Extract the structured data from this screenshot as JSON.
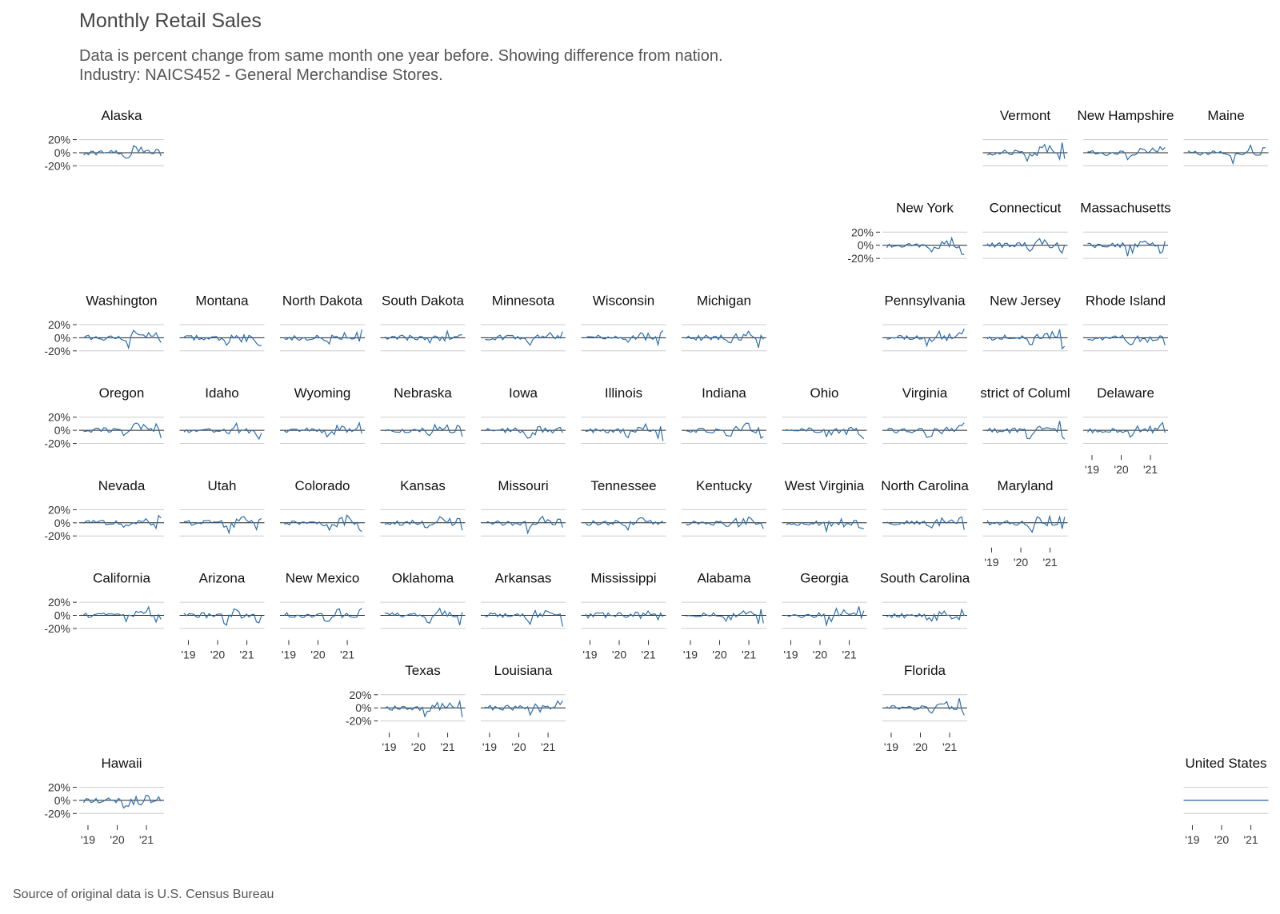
{
  "title": "Monthly Retail Sales",
  "subtitle_line1": "Data is percent change from same month one year before. Showing difference from nation.",
  "subtitle_line2": "Industry: NAICS452 - General Merchandise Stores.",
  "caption": "Source of original data is U.S. Census Bureau",
  "colors": {
    "line": "#2c6fad",
    "zero": "#222222",
    "grid": "#cccccc"
  },
  "chart_data": {
    "type": "line",
    "layout": "geofacet small multiples",
    "ylim": [
      -25,
      25
    ],
    "yticks": [
      20,
      0,
      -20
    ],
    "ytick_labels": [
      "20%",
      "0%",
      "-20%"
    ],
    "xticks": [
      2019,
      2020,
      2021
    ],
    "xtick_labels": [
      "'19",
      "'20",
      "'21"
    ],
    "xlim": [
      2018.7,
      2021.6
    ],
    "states": [
      {
        "name": "Alaska",
        "row": 0,
        "col": 0,
        "y_axis": true,
        "x_axis": false,
        "label": "Alaska"
      },
      {
        "name": "Vermont",
        "row": 0,
        "col": 9,
        "y_axis": false,
        "x_axis": false,
        "label": "Vermont"
      },
      {
        "name": "New Hampshire",
        "row": 0,
        "col": 10,
        "y_axis": false,
        "x_axis": false,
        "label": "New Hampshire"
      },
      {
        "name": "Maine",
        "row": 0,
        "col": 11,
        "y_axis": false,
        "x_axis": false,
        "label": "Maine"
      },
      {
        "name": "New York",
        "row": 1,
        "col": 8,
        "y_axis": true,
        "x_axis": false,
        "label": "New York"
      },
      {
        "name": "Connecticut",
        "row": 1,
        "col": 9,
        "y_axis": false,
        "x_axis": false,
        "label": "Connecticut"
      },
      {
        "name": "Massachusetts",
        "row": 1,
        "col": 10,
        "y_axis": false,
        "x_axis": false,
        "label": "Massachusetts"
      },
      {
        "name": "Washington",
        "row": 2,
        "col": 0,
        "y_axis": true,
        "x_axis": false,
        "label": "Washington"
      },
      {
        "name": "Montana",
        "row": 2,
        "col": 1,
        "y_axis": false,
        "x_axis": false,
        "label": "Montana"
      },
      {
        "name": "North Dakota",
        "row": 2,
        "col": 2,
        "y_axis": false,
        "x_axis": false,
        "label": "North Dakota"
      },
      {
        "name": "South Dakota",
        "row": 2,
        "col": 3,
        "y_axis": false,
        "x_axis": false,
        "label": "South Dakota"
      },
      {
        "name": "Minnesota",
        "row": 2,
        "col": 4,
        "y_axis": false,
        "x_axis": false,
        "label": "Minnesota"
      },
      {
        "name": "Wisconsin",
        "row": 2,
        "col": 5,
        "y_axis": false,
        "x_axis": false,
        "label": "Wisconsin"
      },
      {
        "name": "Michigan",
        "row": 2,
        "col": 6,
        "y_axis": false,
        "x_axis": false,
        "label": "Michigan"
      },
      {
        "name": "Pennsylvania",
        "row": 2,
        "col": 8,
        "y_axis": false,
        "x_axis": false,
        "label": "Pennsylvania"
      },
      {
        "name": "New Jersey",
        "row": 2,
        "col": 9,
        "y_axis": false,
        "x_axis": false,
        "label": "New Jersey"
      },
      {
        "name": "Rhode Island",
        "row": 2,
        "col": 10,
        "y_axis": false,
        "x_axis": false,
        "label": "Rhode Island"
      },
      {
        "name": "Oregon",
        "row": 3,
        "col": 0,
        "y_axis": true,
        "x_axis": false,
        "label": "Oregon"
      },
      {
        "name": "Idaho",
        "row": 3,
        "col": 1,
        "y_axis": false,
        "x_axis": false,
        "label": "Idaho"
      },
      {
        "name": "Wyoming",
        "row": 3,
        "col": 2,
        "y_axis": false,
        "x_axis": false,
        "label": "Wyoming"
      },
      {
        "name": "Nebraska",
        "row": 3,
        "col": 3,
        "y_axis": false,
        "x_axis": false,
        "label": "Nebraska"
      },
      {
        "name": "Iowa",
        "row": 3,
        "col": 4,
        "y_axis": false,
        "x_axis": false,
        "label": "Iowa"
      },
      {
        "name": "Illinois",
        "row": 3,
        "col": 5,
        "y_axis": false,
        "x_axis": false,
        "label": "Illinois"
      },
      {
        "name": "Indiana",
        "row": 3,
        "col": 6,
        "y_axis": false,
        "x_axis": false,
        "label": "Indiana"
      },
      {
        "name": "Ohio",
        "row": 3,
        "col": 7,
        "y_axis": false,
        "x_axis": false,
        "label": "Ohio"
      },
      {
        "name": "Virginia",
        "row": 3,
        "col": 8,
        "y_axis": false,
        "x_axis": false,
        "label": "Virginia"
      },
      {
        "name": "District of Columbia",
        "row": 3,
        "col": 9,
        "y_axis": false,
        "x_axis": false,
        "label": "strict of Columl"
      },
      {
        "name": "Delaware",
        "row": 3,
        "col": 10,
        "y_axis": false,
        "x_axis": true,
        "label": "Delaware"
      },
      {
        "name": "Nevada",
        "row": 4,
        "col": 0,
        "y_axis": true,
        "x_axis": false,
        "label": "Nevada"
      },
      {
        "name": "Utah",
        "row": 4,
        "col": 1,
        "y_axis": false,
        "x_axis": false,
        "label": "Utah"
      },
      {
        "name": "Colorado",
        "row": 4,
        "col": 2,
        "y_axis": false,
        "x_axis": false,
        "label": "Colorado"
      },
      {
        "name": "Kansas",
        "row": 4,
        "col": 3,
        "y_axis": false,
        "x_axis": false,
        "label": "Kansas"
      },
      {
        "name": "Missouri",
        "row": 4,
        "col": 4,
        "y_axis": false,
        "x_axis": false,
        "label": "Missouri"
      },
      {
        "name": "Tennessee",
        "row": 4,
        "col": 5,
        "y_axis": false,
        "x_axis": false,
        "label": "Tennessee"
      },
      {
        "name": "Kentucky",
        "row": 4,
        "col": 6,
        "y_axis": false,
        "x_axis": false,
        "label": "Kentucky"
      },
      {
        "name": "West Virginia",
        "row": 4,
        "col": 7,
        "y_axis": false,
        "x_axis": false,
        "label": "West Virginia"
      },
      {
        "name": "North Carolina",
        "row": 4,
        "col": 8,
        "y_axis": false,
        "x_axis": false,
        "label": "North Carolina"
      },
      {
        "name": "Maryland",
        "row": 4,
        "col": 9,
        "y_axis": false,
        "x_axis": true,
        "label": "Maryland"
      },
      {
        "name": "California",
        "row": 5,
        "col": 0,
        "y_axis": true,
        "x_axis": false,
        "label": "California"
      },
      {
        "name": "Arizona",
        "row": 5,
        "col": 1,
        "y_axis": false,
        "x_axis": true,
        "label": "Arizona"
      },
      {
        "name": "New Mexico",
        "row": 5,
        "col": 2,
        "y_axis": false,
        "x_axis": true,
        "label": "New Mexico"
      },
      {
        "name": "Oklahoma",
        "row": 5,
        "col": 3,
        "y_axis": false,
        "x_axis": false,
        "label": "Oklahoma"
      },
      {
        "name": "Arkansas",
        "row": 5,
        "col": 4,
        "y_axis": false,
        "x_axis": false,
        "label": "Arkansas"
      },
      {
        "name": "Mississippi",
        "row": 5,
        "col": 5,
        "y_axis": false,
        "x_axis": true,
        "label": "Mississippi"
      },
      {
        "name": "Alabama",
        "row": 5,
        "col": 6,
        "y_axis": false,
        "x_axis": true,
        "label": "Alabama"
      },
      {
        "name": "Georgia",
        "row": 5,
        "col": 7,
        "y_axis": false,
        "x_axis": true,
        "label": "Georgia"
      },
      {
        "name": "South Carolina",
        "row": 5,
        "col": 8,
        "y_axis": false,
        "x_axis": false,
        "label": "South Carolina"
      },
      {
        "name": "Texas",
        "row": 6,
        "col": 3,
        "y_axis": true,
        "x_axis": true,
        "label": "Texas"
      },
      {
        "name": "Louisiana",
        "row": 6,
        "col": 4,
        "y_axis": false,
        "x_axis": true,
        "label": "Louisiana"
      },
      {
        "name": "Florida",
        "row": 6,
        "col": 8,
        "y_axis": false,
        "x_axis": true,
        "label": "Florida"
      },
      {
        "name": "Hawaii",
        "row": 7,
        "col": 0,
        "y_axis": true,
        "x_axis": true,
        "label": "Hawaii"
      },
      {
        "name": "United States",
        "row": 7,
        "col": 11,
        "y_axis": false,
        "x_axis": true,
        "label": "United States"
      }
    ]
  }
}
